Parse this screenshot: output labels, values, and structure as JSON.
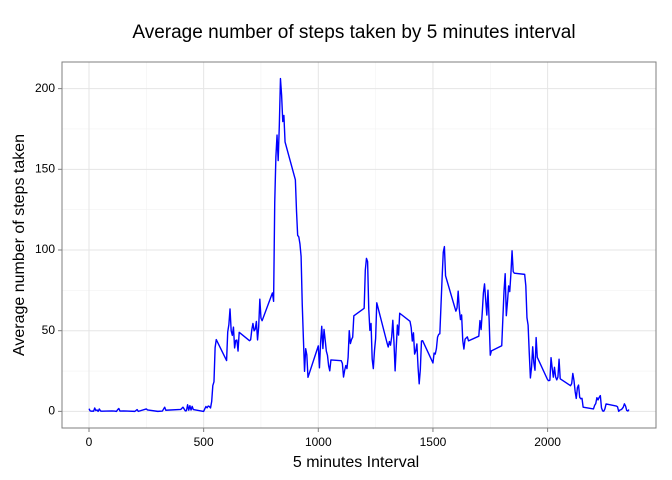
{
  "chart_data": {
    "type": "line",
    "title": "Average number of steps taken by 5 minutes interval",
    "x_label": "5 minutes Interval",
    "y_label": "Average number of steps taken",
    "x": [
      0,
      5,
      10,
      15,
      20,
      25,
      30,
      35,
      40,
      45,
      50,
      55,
      100,
      110,
      120,
      125,
      130,
      135,
      150,
      200,
      210,
      215,
      250,
      255,
      300,
      320,
      330,
      335,
      400,
      410,
      420,
      425,
      430,
      435,
      440,
      445,
      450,
      455,
      500,
      505,
      510,
      515,
      520,
      525,
      530,
      535,
      540,
      545,
      550,
      555,
      600,
      605,
      610,
      615,
      620,
      625,
      630,
      635,
      640,
      645,
      650,
      655,
      700,
      705,
      710,
      715,
      720,
      725,
      730,
      735,
      740,
      745,
      750,
      755,
      800,
      805,
      810,
      815,
      820,
      825,
      830,
      835,
      840,
      845,
      850,
      855,
      900,
      905,
      910,
      915,
      920,
      925,
      930,
      935,
      940,
      945,
      950,
      955,
      1000,
      1005,
      1010,
      1015,
      1020,
      1025,
      1030,
      1035,
      1040,
      1045,
      1050,
      1055,
      1100,
      1105,
      1110,
      1115,
      1120,
      1125,
      1130,
      1135,
      1140,
      1145,
      1150,
      1155,
      1200,
      1205,
      1210,
      1215,
      1220,
      1225,
      1230,
      1235,
      1240,
      1245,
      1250,
      1255,
      1300,
      1305,
      1310,
      1315,
      1320,
      1325,
      1330,
      1335,
      1340,
      1345,
      1350,
      1355,
      1400,
      1405,
      1410,
      1415,
      1420,
      1425,
      1430,
      1435,
      1440,
      1445,
      1450,
      1455,
      1500,
      1505,
      1510,
      1515,
      1520,
      1525,
      1530,
      1535,
      1540,
      1545,
      1550,
      1555,
      1600,
      1605,
      1610,
      1615,
      1620,
      1625,
      1630,
      1635,
      1640,
      1645,
      1650,
      1655,
      1700,
      1705,
      1710,
      1715,
      1720,
      1725,
      1730,
      1735,
      1740,
      1745,
      1750,
      1755,
      1800,
      1805,
      1810,
      1815,
      1820,
      1825,
      1830,
      1835,
      1840,
      1845,
      1850,
      1855,
      1900,
      1905,
      1910,
      1915,
      1920,
      1925,
      1930,
      1935,
      1940,
      1945,
      1950,
      1955,
      2000,
      2005,
      2010,
      2015,
      2020,
      2025,
      2030,
      2035,
      2040,
      2045,
      2050,
      2055,
      2100,
      2105,
      2110,
      2115,
      2120,
      2125,
      2130,
      2135,
      2140,
      2145,
      2150,
      2155,
      2200,
      2205,
      2210,
      2215,
      2220,
      2225,
      2230,
      2235,
      2240,
      2245,
      2250,
      2255,
      2300,
      2305,
      2310,
      2315,
      2320,
      2325,
      2330,
      2335,
      2340,
      2345,
      2350,
      2355
    ],
    "series": [
      {
        "name": "steps",
        "color": "#0000ff",
        "values": [
          1.7,
          0.3,
          0.1,
          0.2,
          0.1,
          2.1,
          0.5,
          0.9,
          0,
          1.5,
          0.3,
          0.1,
          0.3,
          0.2,
          0,
          1.1,
          1.8,
          0.2,
          0.3,
          0,
          1.1,
          0,
          1.5,
          0.9,
          0,
          0.2,
          2.6,
          0.7,
          1.2,
          2.6,
          0.3,
          0.4,
          4.1,
          0.7,
          3.5,
          0.8,
          3.1,
          1.1,
          0,
          1.6,
          3,
          2.2,
          3.3,
          3,
          2.1,
          6.1,
          16,
          18.3,
          39.5,
          44.5,
          31.5,
          49.3,
          53.8,
          63.5,
          50,
          47.1,
          52.2,
          39.3,
          44,
          44.2,
          37.4,
          49,
          43.8,
          44.4,
          50.5,
          54.5,
          49.9,
          51,
          55.7,
          44.3,
          52.3,
          69.5,
          57.8,
          56.2,
          73.4,
          68.2,
          129.4,
          157.5,
          171.2,
          155.4,
          177.3,
          206.2,
          195.9,
          179.6,
          183.4,
          167,
          143.5,
          124,
          109.1,
          108.1,
          103.7,
          96,
          66.2,
          45.2,
          24.8,
          38.8,
          35,
          21.1,
          40.6,
          27,
          42.4,
          52.7,
          38.9,
          50.8,
          44.3,
          37.4,
          34.7,
          28.3,
          25.1,
          31.9,
          31.4,
          29.7,
          21.3,
          25.5,
          28.4,
          26.5,
          33.4,
          50,
          42,
          44.6,
          46,
          59.2,
          63.9,
          87.6,
          94.8,
          92.8,
          63.4,
          50.2,
          54.5,
          32.4,
          26.5,
          37.7,
          45.1,
          67.3,
          42.3,
          39.9,
          43.3,
          41,
          46.2,
          56.4,
          42.8,
          25.1,
          40,
          53.5,
          47.3,
          60.8,
          55.8,
          52,
          43.6,
          48.7,
          35.5,
          37.5,
          41.8,
          27.5,
          17.1,
          26.1,
          43.6,
          43.8,
          30,
          36.1,
          35.5,
          38.8,
          46,
          47.7,
          48.1,
          65.3,
          82.9,
          98.7,
          102.1,
          84,
          62.1,
          64.1,
          74.5,
          63.2,
          56.9,
          59.8,
          43.9,
          38.6,
          44.7,
          45.5,
          46.2,
          43.7,
          46.6,
          56.3,
          50.7,
          61.2,
          73.4,
          79,
          68.9,
          59.7,
          75.1,
          56.5,
          34.8,
          37.5,
          40.7,
          58,
          74.7,
          85.3,
          59.3,
          67.8,
          77.7,
          74.2,
          85.3,
          99.5,
          86.6,
          85.6,
          84.9,
          77.8,
          58,
          53.4,
          36.3,
          20.7,
          27.4,
          40,
          30.2,
          25.5,
          45.7,
          33.5,
          19.6,
          19,
          19.3,
          33.3,
          26.8,
          21.2,
          27.3,
          21.3,
          19.5,
          21.3,
          32.3,
          20.2,
          15.9,
          17.2,
          23.5,
          19.2,
          12.5,
          8,
          14.7,
          16.3,
          8.7,
          7.8,
          8.1,
          2.6,
          1.5,
          3.7,
          4.8,
          8.5,
          7.1,
          8.7,
          9.8,
          2.2,
          0.3,
          0.1,
          1.6,
          4.6,
          3.3,
          2.8,
          0,
          0.8,
          1,
          1.6,
          2.6,
          4.7,
          3.3,
          0.6,
          0.2,
          1.1
        ]
      }
    ],
    "xlim": [
      -117.75,
      2472.75
    ],
    "ylim": [
      -10.3,
      216.5
    ],
    "xticks": [
      0,
      500,
      1000,
      1500,
      2000
    ],
    "yticks": [
      0,
      50,
      100,
      150,
      200
    ],
    "grid": true
  }
}
